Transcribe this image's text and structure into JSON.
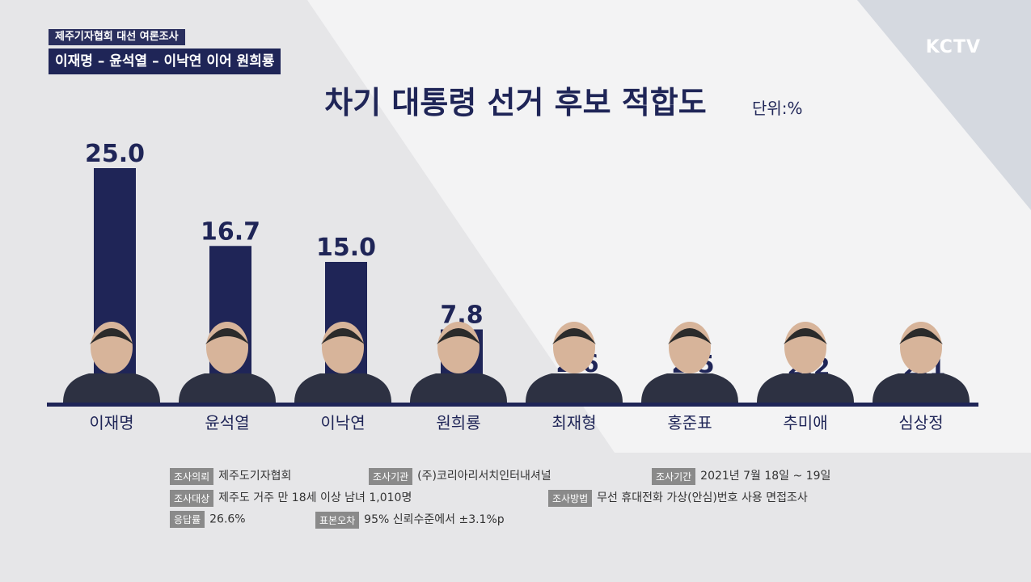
{
  "tags": {
    "line1": "제주기자협회 대선 여론조사",
    "line2": "이재명 – 윤석열 – 이낙연 이어 원희룡"
  },
  "logo": "KCTV",
  "title": "차기 대통령 선거 후보 적합도",
  "unit": "단위:%",
  "colors": {
    "bar": "#1f2557",
    "baseline": "#1f2557",
    "text": "#1f2557"
  },
  "chart_data": {
    "type": "bar",
    "categories": [
      "이재명",
      "윤석열",
      "이낙연",
      "원희룡",
      "최재형",
      "홍준표",
      "추미애",
      "심상정"
    ],
    "values": [
      25.0,
      16.7,
      15.0,
      7.8,
      2.6,
      2.5,
      2.2,
      2.1
    ],
    "data_labels": [
      "25.0",
      "16.7",
      "15.0",
      "7.8",
      "2.6",
      "2.5",
      "2.2",
      "2.1"
    ],
    "title": "차기 대통령 선거 후보 적합도",
    "ylim": [
      0,
      25
    ]
  },
  "survey": {
    "client_label": "조사의뢰",
    "client": "제주도기자협회",
    "agency_label": "조사기관",
    "agency": "(주)코리아리서치인터내셔널",
    "period_label": "조사기간",
    "period": "2021년 7월 18일 ~ 19일",
    "target_label": "조사대상",
    "target": "제주도 거주 만 18세 이상 남녀 1,010명",
    "method_label": "조사방법",
    "method": "무선 휴대전화 가상(안심)번호 사용 면접조사",
    "response_label": "응답률",
    "response": "26.6%",
    "error_label": "표본오차",
    "error": "95% 신뢰수준에서 ±3.1%p"
  }
}
